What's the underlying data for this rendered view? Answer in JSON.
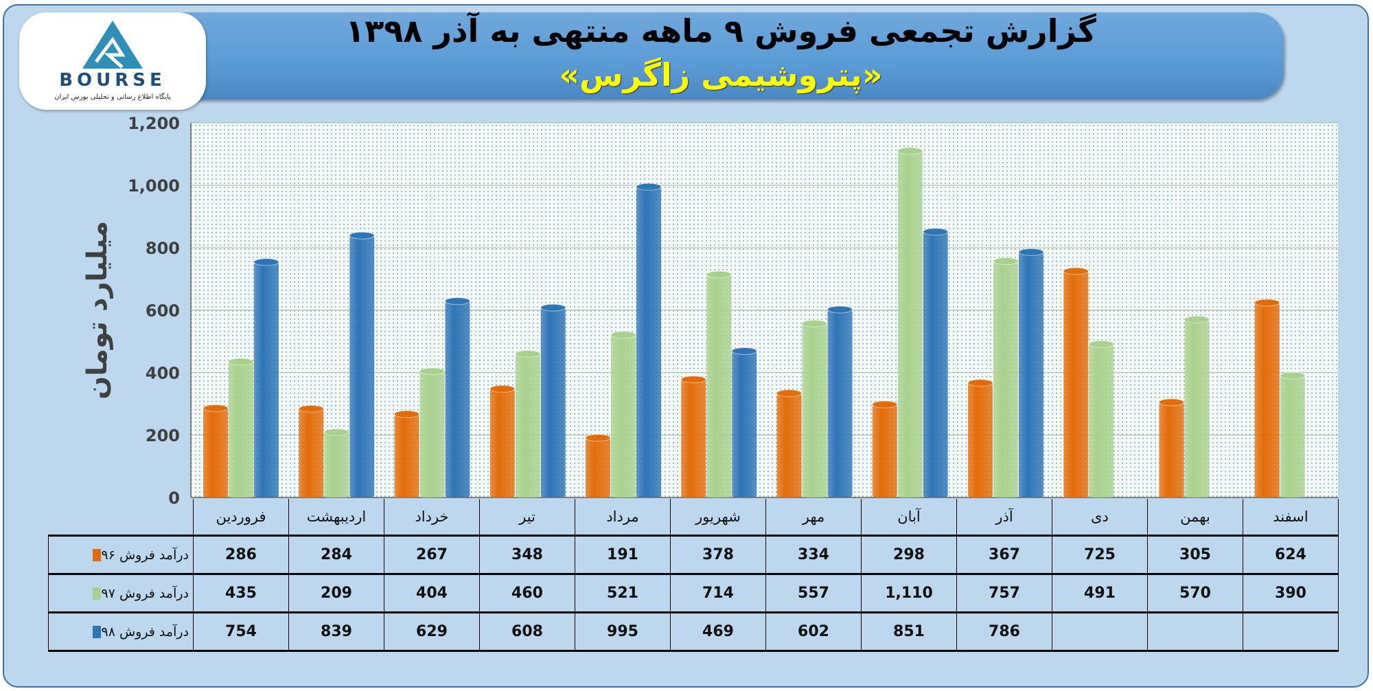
{
  "header": {
    "title": "گزارش تجمعی فروش ۹ ماهه منتهی به آذر ۱۳۹۸",
    "company": "«پتروشیمی زاگرس»"
  },
  "logo": {
    "word": "BOURSE",
    "subtitle": "پایگاه اطلاع رسانی و تحلیلی بورس ایران"
  },
  "colors": {
    "s96": "#e36c0a",
    "s97": "#a9d18e",
    "s98": "#2e75b6",
    "background": "#bdd7ee",
    "banner": "#5b9bd5"
  },
  "chart_data": {
    "type": "bar",
    "title": "گزارش تجمعی فروش ۹ ماهه منتهی به آذر ۱۳۹۸",
    "ylabel": "میلیارد تومان",
    "xlabel": "",
    "ylim": [
      0,
      1200
    ],
    "yticks": [
      0,
      200,
      400,
      600,
      800,
      1000,
      1200
    ],
    "ytick_labels": [
      "0",
      "200",
      "400",
      "600",
      "800",
      "1,000",
      "1,200"
    ],
    "grid": true,
    "legend": "table-below",
    "categories": [
      "فروردین",
      "اردیبهشت",
      "خرداد",
      "تیر",
      "مرداد",
      "شهریور",
      "مهر",
      "آبان",
      "آذر",
      "دی",
      "بهمن",
      "اسفند"
    ],
    "series": [
      {
        "name": "درآمد فروش ۹۶",
        "color": "#e36c0a",
        "values": [
          286,
          284,
          267,
          348,
          191,
          378,
          334,
          298,
          367,
          725,
          305,
          624
        ],
        "labels": [
          "286",
          "284",
          "267",
          "348",
          "191",
          "378",
          "334",
          "298",
          "367",
          "725",
          "305",
          "624"
        ]
      },
      {
        "name": "درآمد فروش ۹۷",
        "color": "#a9d18e",
        "values": [
          435,
          209,
          404,
          460,
          521,
          714,
          557,
          1110,
          757,
          491,
          570,
          390
        ],
        "labels": [
          "435",
          "209",
          "404",
          "460",
          "521",
          "714",
          "557",
          "1,110",
          "757",
          "491",
          "570",
          "390"
        ]
      },
      {
        "name": "درآمد فروش ۹۸",
        "color": "#2e75b6",
        "values": [
          754,
          839,
          629,
          608,
          995,
          469,
          602,
          851,
          786,
          null,
          null,
          null
        ],
        "labels": [
          "754",
          "839",
          "629",
          "608",
          "995",
          "469",
          "602",
          "851",
          "786",
          "",
          "",
          ""
        ]
      }
    ]
  }
}
